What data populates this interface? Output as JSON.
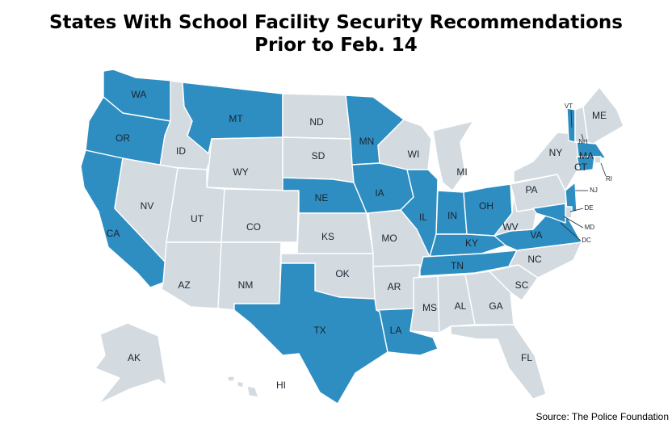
{
  "title": {
    "line1": "States With School Facility Security Recommendations",
    "line2": "Prior to Feb. 14"
  },
  "source": "Source: The Police Foundation",
  "colors": {
    "with_recommendations": "#2e8ec2",
    "without_recommendations": "#d3dbe1",
    "border": "#ffffff"
  },
  "states_with_recommendations": [
    "WA",
    "OR",
    "CA",
    "MT",
    "MN",
    "NE",
    "IA",
    "IL",
    "IN",
    "OH",
    "KY",
    "TN",
    "VA",
    "TX",
    "LA",
    "VT",
    "MA",
    "CT",
    "NJ",
    "MD"
  ],
  "labels": {
    "WA": "WA",
    "OR": "OR",
    "CA": "CA",
    "NV": "NV",
    "ID": "ID",
    "MT": "MT",
    "WY": "WY",
    "UT": "UT",
    "CO": "CO",
    "AZ": "AZ",
    "NM": "NM",
    "ND": "ND",
    "SD": "SD",
    "NE": "NE",
    "KS": "KS",
    "OK": "OK",
    "TX": "TX",
    "MN": "MN",
    "IA": "IA",
    "MO": "MO",
    "AR": "AR",
    "LA": "LA",
    "WI": "WI",
    "IL": "IL",
    "MI": "MI",
    "IN": "IN",
    "OH": "OH",
    "KY": "KY",
    "TN": "TN",
    "MS": "MS",
    "AL": "AL",
    "GA": "GA",
    "FL": "FL",
    "SC": "SC",
    "NC": "NC",
    "VA": "VA",
    "WV": "WV",
    "PA": "PA",
    "NY": "NY",
    "ME": "ME",
    "VT": "VT",
    "NH": "NH",
    "MA": "MA",
    "RI": "RI",
    "CT": "CT",
    "NJ": "NJ",
    "DE": "DE",
    "MD": "MD",
    "DC": "DC",
    "AK": "AK",
    "HI": "HI"
  }
}
